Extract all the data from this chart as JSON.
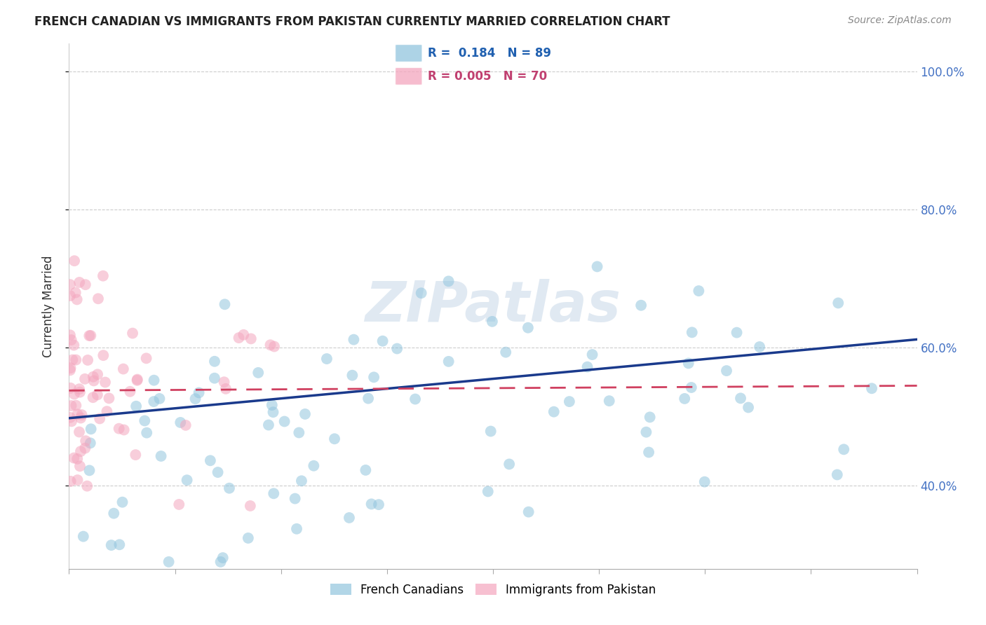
{
  "title": "FRENCH CANADIAN VS IMMIGRANTS FROM PAKISTAN CURRENTLY MARRIED CORRELATION CHART",
  "source": "Source: ZipAtlas.com",
  "ylabel": "Currently Married",
  "ytick_values": [
    0.4,
    0.6,
    0.8,
    1.0
  ],
  "ytick_labels": [
    "40.0%",
    "60.0%",
    "80.0%",
    "100.0%"
  ],
  "xlim": [
    0.0,
    0.8
  ],
  "ylim": [
    0.28,
    1.04
  ],
  "blue_color": "#92c5de",
  "pink_color": "#f4a6be",
  "trendline_blue": "#1a3a8c",
  "trendline_pink": "#d04060",
  "watermark": "ZIPatlas",
  "blue_r": 0.184,
  "blue_n": 89,
  "pink_r": 0.005,
  "pink_n": 70,
  "legend_blue_text": "R =  0.184   N = 89",
  "legend_pink_text": "R = 0.005   N = 70",
  "legend_blue_color": "#2060b0",
  "legend_pink_color": "#c04070",
  "right_tick_color": "#4472c4",
  "title_fontsize": 12,
  "source_fontsize": 10,
  "axis_label_fontsize": 12,
  "tick_fontsize": 12
}
